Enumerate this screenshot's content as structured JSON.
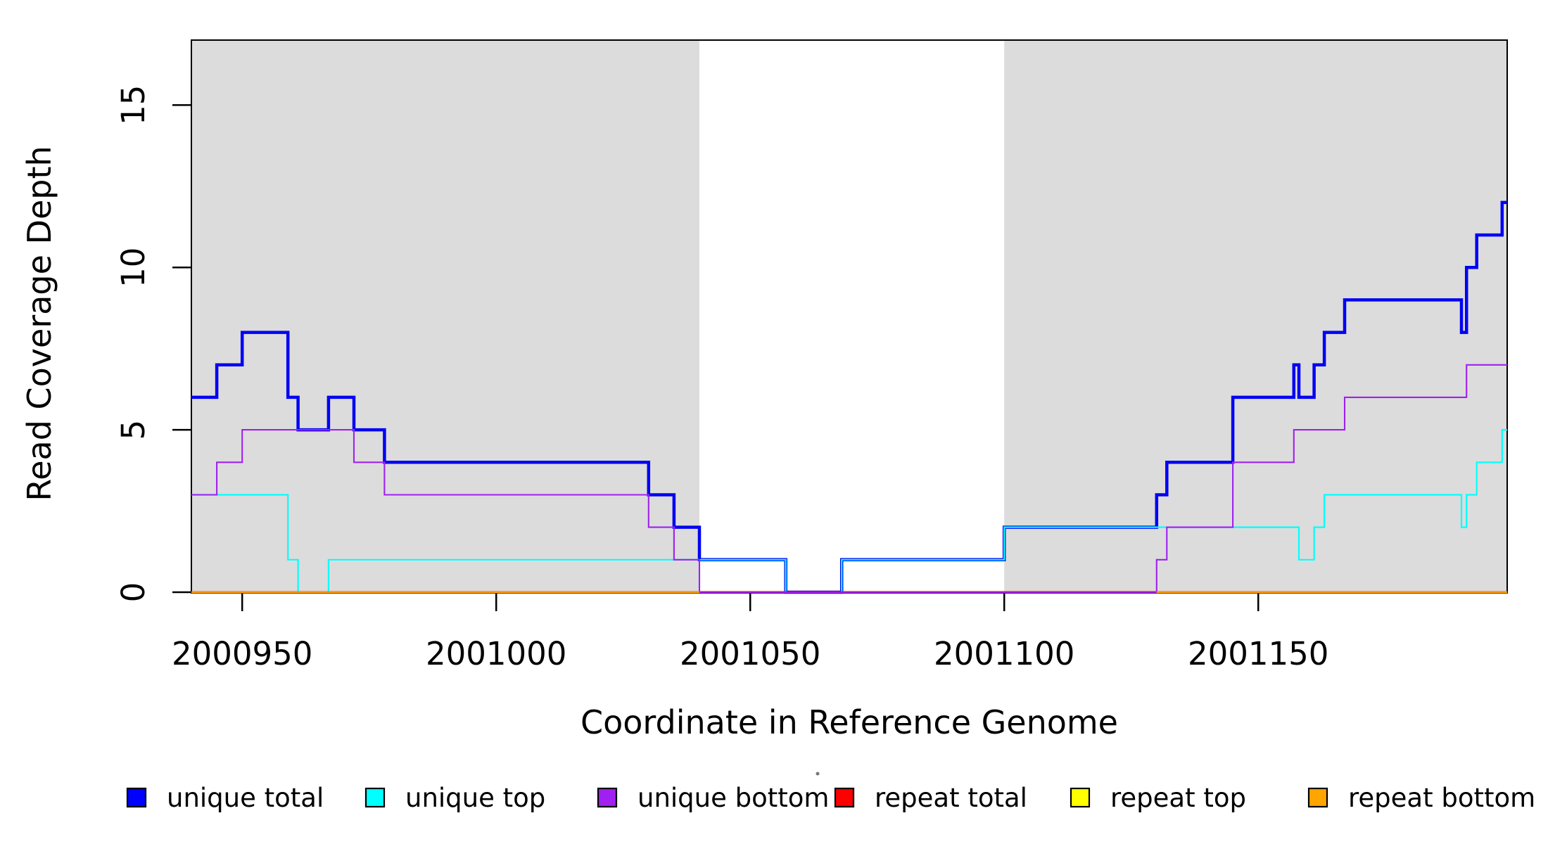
{
  "chart_data": {
    "type": "line",
    "subtype": "step-coverage",
    "title": "",
    "xlabel": "Coordinate in Reference Genome",
    "ylabel": "Read Coverage Depth",
    "xlim": [
      2000940,
      2001199
    ],
    "ylim": [
      0,
      17
    ],
    "x_ticks": [
      2000950,
      2001000,
      2001050,
      2001100,
      2001150
    ],
    "y_ticks": [
      0,
      5,
      10,
      15
    ],
    "grid": false,
    "legend_position": "bottom",
    "shaded_regions": {
      "color": "#DCDCDC",
      "ranges": [
        [
          2000940,
          2001040
        ],
        [
          2001100,
          2001199
        ]
      ]
    },
    "series": [
      {
        "name": "unique total",
        "color": "#0101F3",
        "line_width": 4.5,
        "start_value": 6,
        "steps": [
          [
            2000945,
            7
          ],
          [
            2000950,
            8
          ],
          [
            2000959,
            6
          ],
          [
            2000961,
            5
          ],
          [
            2000967,
            6
          ],
          [
            2000972,
            5
          ],
          [
            2000978,
            4
          ],
          [
            2001030,
            3
          ],
          [
            2001035,
            2
          ],
          [
            2001040,
            1
          ],
          [
            2001057,
            0
          ],
          [
            2001068,
            1
          ],
          [
            2001100,
            2
          ],
          [
            2001130,
            3
          ],
          [
            2001132,
            4
          ],
          [
            2001145,
            6
          ],
          [
            2001157,
            7
          ],
          [
            2001158,
            6
          ],
          [
            2001161,
            7
          ],
          [
            2001163,
            8
          ],
          [
            2001167,
            9
          ],
          [
            2001190,
            8
          ],
          [
            2001191,
            10
          ],
          [
            2001193,
            11
          ],
          [
            2001198,
            12
          ]
        ]
      },
      {
        "name": "unique top",
        "color": "#00FFFF",
        "line_width": 2.2,
        "start_value": 3,
        "steps": [
          [
            2000959,
            1
          ],
          [
            2000961,
            0
          ],
          [
            2000967,
            1
          ],
          [
            2001057,
            0
          ],
          [
            2001068,
            1
          ],
          [
            2001100,
            2
          ],
          [
            2001158,
            1
          ],
          [
            2001161,
            2
          ],
          [
            2001163,
            3
          ],
          [
            2001190,
            2
          ],
          [
            2001191,
            3
          ],
          [
            2001193,
            4
          ],
          [
            2001198,
            5
          ]
        ]
      },
      {
        "name": "unique bottom",
        "color": "#A020F0",
        "line_width": 2.1,
        "start_value": 3,
        "steps": [
          [
            2000945,
            4
          ],
          [
            2000950,
            5
          ],
          [
            2000972,
            4
          ],
          [
            2000978,
            3
          ],
          [
            2001030,
            2
          ],
          [
            2001035,
            1
          ],
          [
            2001040,
            0
          ],
          [
            2001130,
            1
          ],
          [
            2001132,
            2
          ],
          [
            2001145,
            4
          ],
          [
            2001157,
            5
          ],
          [
            2001167,
            6
          ],
          [
            2001191,
            7
          ]
        ]
      },
      {
        "name": "repeat total",
        "color": "#FF0000",
        "line_width": 3,
        "start_value": 0,
        "steps": []
      },
      {
        "name": "repeat top",
        "color": "#FFFF00",
        "line_width": 2.4,
        "start_value": 0,
        "steps": []
      },
      {
        "name": "repeat bottom",
        "color": "#FFA500",
        "line_width": 2.6,
        "start_value": 0,
        "steps": [],
        "draw_ranges": [
          [
            2000940,
            2001040
          ],
          [
            2001130,
            2001199
          ]
        ]
      }
    ],
    "draw_order": [
      "unique total",
      "unique top",
      "repeat top",
      "repeat total",
      "unique bottom",
      "repeat bottom"
    ],
    "legend": [
      {
        "label": "unique total",
        "color": "#0000FF"
      },
      {
        "label": "unique top",
        "color": "#00FFFF"
      },
      {
        "label": "unique bottom",
        "color": "#A020F0"
      },
      {
        "label": "repeat total",
        "color": "#FF0000"
      },
      {
        "label": "repeat top",
        "color": "#FFFF00"
      },
      {
        "label": "repeat bottom",
        "color": "#FFA500"
      }
    ],
    "stray_dot": {
      "x": 1162,
      "y": 1100,
      "color": "#777777"
    }
  }
}
